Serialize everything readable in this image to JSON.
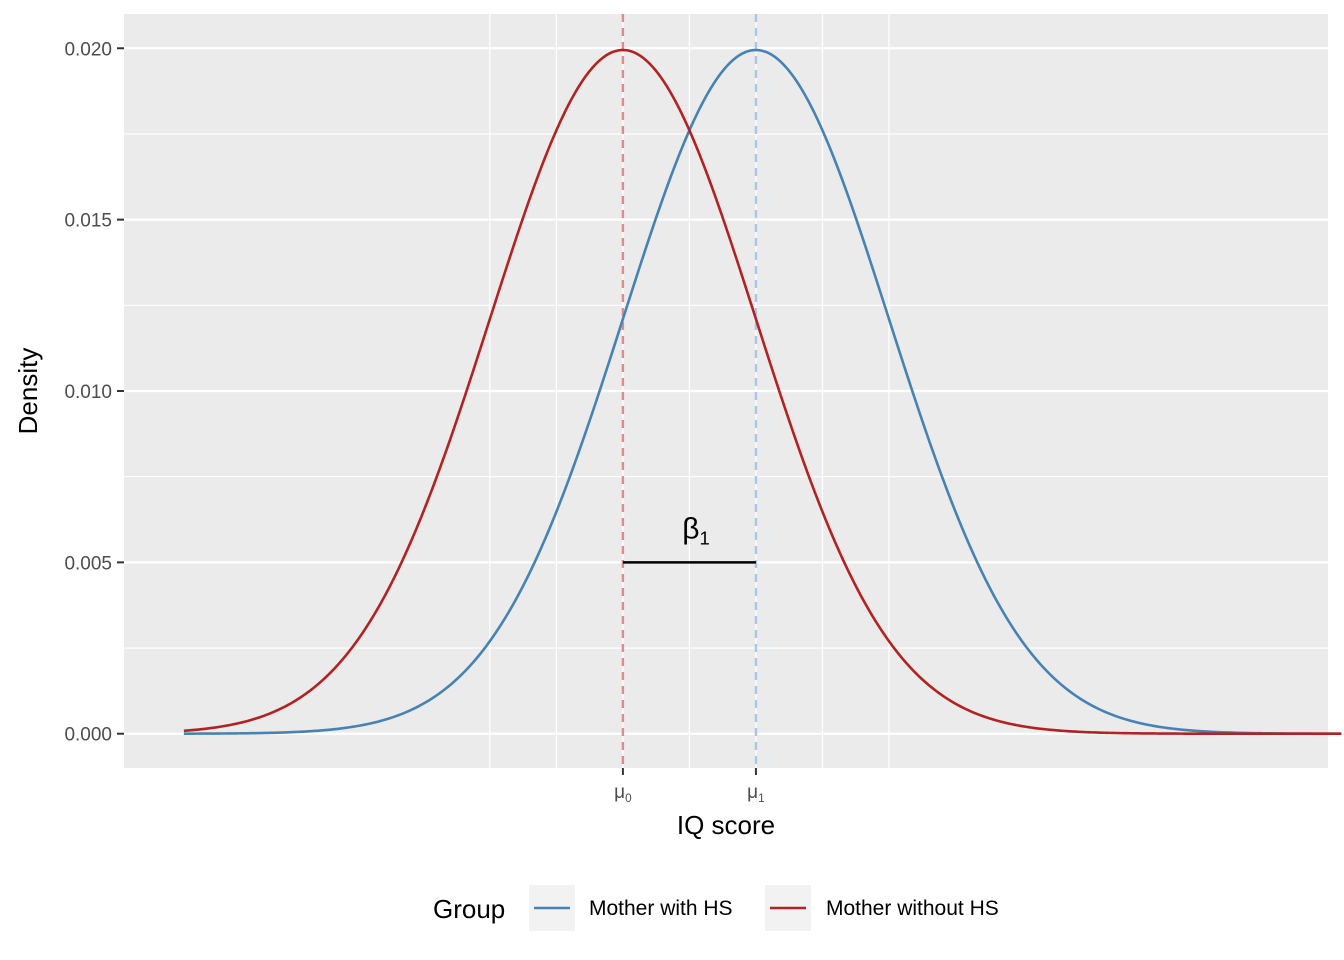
{
  "chart_data": {
    "type": "line",
    "xlabel": "IQ score",
    "ylabel": "Density",
    "xlim": [
      -2.25,
      6.8
    ],
    "ylim": [
      -0.001,
      0.021
    ],
    "y_ticks": [
      0.0,
      0.005,
      0.01,
      0.015,
      0.02
    ],
    "y_tick_labels": [
      "0.000",
      "0.005",
      "0.010",
      "0.015",
      "0.020"
    ],
    "x_ticks": [
      {
        "value": 1.5,
        "base": "μ",
        "sub": "0"
      },
      {
        "value": 2.5,
        "base": "μ",
        "sub": "1"
      }
    ],
    "x_gridlines": [
      0.5,
      1.0,
      1.5,
      2.0,
      2.5,
      3.0,
      3.5
    ],
    "grid": true,
    "series": [
      {
        "name": "Mother with HS",
        "color": "#4682b4",
        "mean": 2.5,
        "sd": 1.0,
        "peak": 0.01995,
        "x_range": [
          -1.8,
          6.9
        ]
      },
      {
        "name": "Mother without HS",
        "color": "#b22222",
        "mean": 1.5,
        "sd": 1.0,
        "peak": 0.01995,
        "x_range": [
          -1.8,
          6.9
        ]
      }
    ],
    "vlines": [
      {
        "x": 1.5,
        "color": "#e08a8a",
        "style": "dashed"
      },
      {
        "x": 2.5,
        "color": "#a9c6e6",
        "style": "dashed"
      }
    ],
    "segment": {
      "x0": 1.5,
      "x1": 2.5,
      "y": 0.005,
      "color": "#000000"
    },
    "annotation": {
      "base": "β",
      "sub": "1",
      "x": 2.05,
      "y": 0.0057
    },
    "legend": {
      "title": "Group",
      "position": "bottom"
    }
  }
}
